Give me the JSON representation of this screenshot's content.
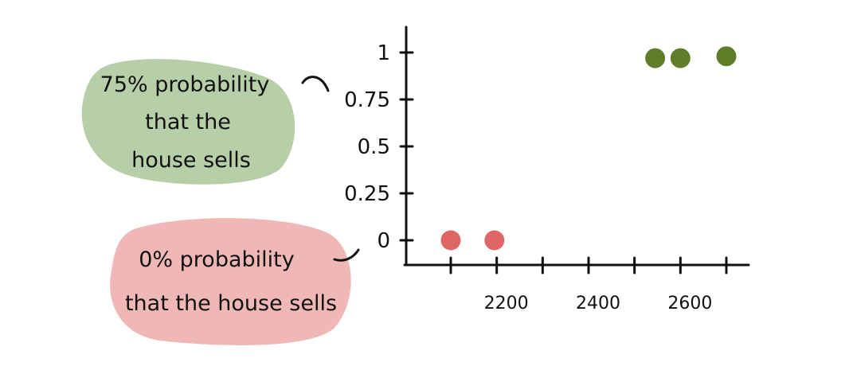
{
  "chart_data": {
    "type": "scatter",
    "title": "",
    "xlabel": "",
    "ylabel": "",
    "xlim": [
      2000,
      2750
    ],
    "ylim": [
      -0.1,
      1.15
    ],
    "x_ticks": [
      2100,
      2200,
      2300,
      2400,
      2500,
      2600,
      2700
    ],
    "x_tick_labels": [
      {
        "value": 2200,
        "label": "2200"
      },
      {
        "value": 2400,
        "label": "2400"
      },
      {
        "value": 2600,
        "label": "2600"
      }
    ],
    "y_ticks": [
      {
        "value": 0,
        "label": "0"
      },
      {
        "value": 0.25,
        "label": "0.25"
      },
      {
        "value": 0.5,
        "label": "0.5"
      },
      {
        "value": 0.75,
        "label": "0.75"
      },
      {
        "value": 1,
        "label": "1"
      }
    ],
    "grid": false,
    "points": [
      {
        "x": 2100,
        "y": 0,
        "color": "#e06666"
      },
      {
        "x": 2195,
        "y": 0,
        "color": "#e06666"
      },
      {
        "x": 2545,
        "y": 0.97,
        "color": "#5f7d2a"
      },
      {
        "x": 2600,
        "y": 0.97,
        "color": "#5f7d2a"
      },
      {
        "x": 2700,
        "y": 0.98,
        "color": "#5f7d2a"
      }
    ]
  },
  "annotations": {
    "green_note": {
      "lines": [
        "75% probability",
        "that the",
        "house sells"
      ],
      "fill": "#b7cfa8"
    },
    "red_note": {
      "lines": [
        "0% probability",
        "that the house sells"
      ],
      "fill": "#efb8b6"
    }
  },
  "colors": {
    "axis": "#111111",
    "negative": "#e06666",
    "positive": "#5f7d2a"
  }
}
